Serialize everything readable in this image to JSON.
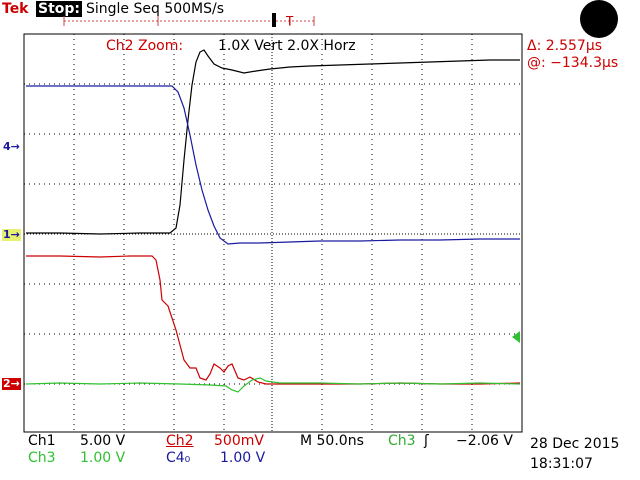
{
  "header": {
    "brand": "Tek",
    "run_state": "Stop:",
    "acq_mode": "Single Seq  500MS/s"
  },
  "zoom": {
    "label": "Ch2 Zoom:",
    "value": "1.0X Vert    2.0X Horz"
  },
  "cursors": {
    "delta": "Δ: 2.557μs",
    "at": "@: −134.3μs"
  },
  "markers": {
    "ch4": "4→",
    "ch1": "1→",
    "ch2": "2→"
  },
  "status": {
    "ch1_label": "Ch1",
    "ch1_scale": "5.00 V",
    "ch2_label": "Ch2",
    "ch2_scale": "500mV",
    "timebase": "M 50.0ns",
    "trig_source": "Ch3",
    "trig_slope_icon": "ʃ",
    "trig_level": "−2.06 V",
    "ch3_label": "Ch3",
    "ch3_scale": "1.00 V",
    "ch4_label": "C4₀",
    "ch4_scale": "1.00 V",
    "date": "28 Dec 2015",
    "time": "18:31:07"
  },
  "colors": {
    "ch1": "#000000",
    "ch2": "#cc0000",
    "ch3": "#30c030",
    "ch4": "#1a1aa0"
  }
}
